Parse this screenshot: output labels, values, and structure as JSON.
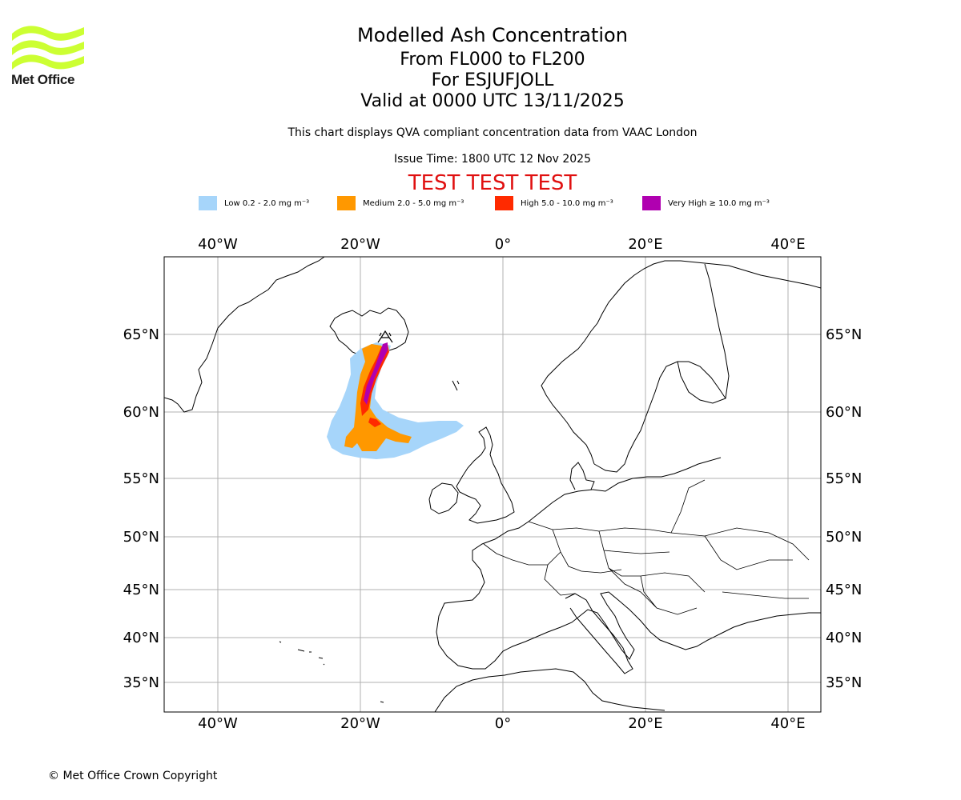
{
  "logo": {
    "text": "Met Office",
    "color": "#ccff33"
  },
  "header": {
    "title": "Modelled Ash Concentration",
    "levels": "From FL000 to FL200",
    "volcano": "For ESJUFJOLL",
    "valid": "Valid at 0000 UTC 13/11/2025",
    "description": "This chart displays QVA compliant concentration data from VAAC London",
    "issue_time": "Issue Time: 1800 UTC 12 Nov 2025",
    "test_banner": "TEST TEST TEST"
  },
  "legend": [
    {
      "label": "Low 0.2 - 2.0 mg m⁻³",
      "color": "#a6d5fa"
    },
    {
      "label": "Medium 2.0 - 5.0 mg m⁻³",
      "color": "#ff9800"
    },
    {
      "label": "High 5.0 - 10.0 mg m⁻³",
      "color": "#ff2a00"
    },
    {
      "label": "Very High  ≥  10.0 mg m⁻³",
      "color": "#b000b0"
    }
  ],
  "map": {
    "lon_labels": [
      "40°W",
      "20°W",
      "0°",
      "20°E",
      "40°E"
    ],
    "lat_labels": [
      "65°N",
      "60°N",
      "55°N",
      "50°N",
      "45°N",
      "40°N",
      "35°N"
    ],
    "lon_values": [
      -40,
      -20,
      0,
      20,
      40
    ],
    "lat_values": [
      65,
      60,
      55,
      50,
      45,
      40,
      35
    ]
  },
  "footer": {
    "copyright": "© Met Office Crown Copyright"
  }
}
